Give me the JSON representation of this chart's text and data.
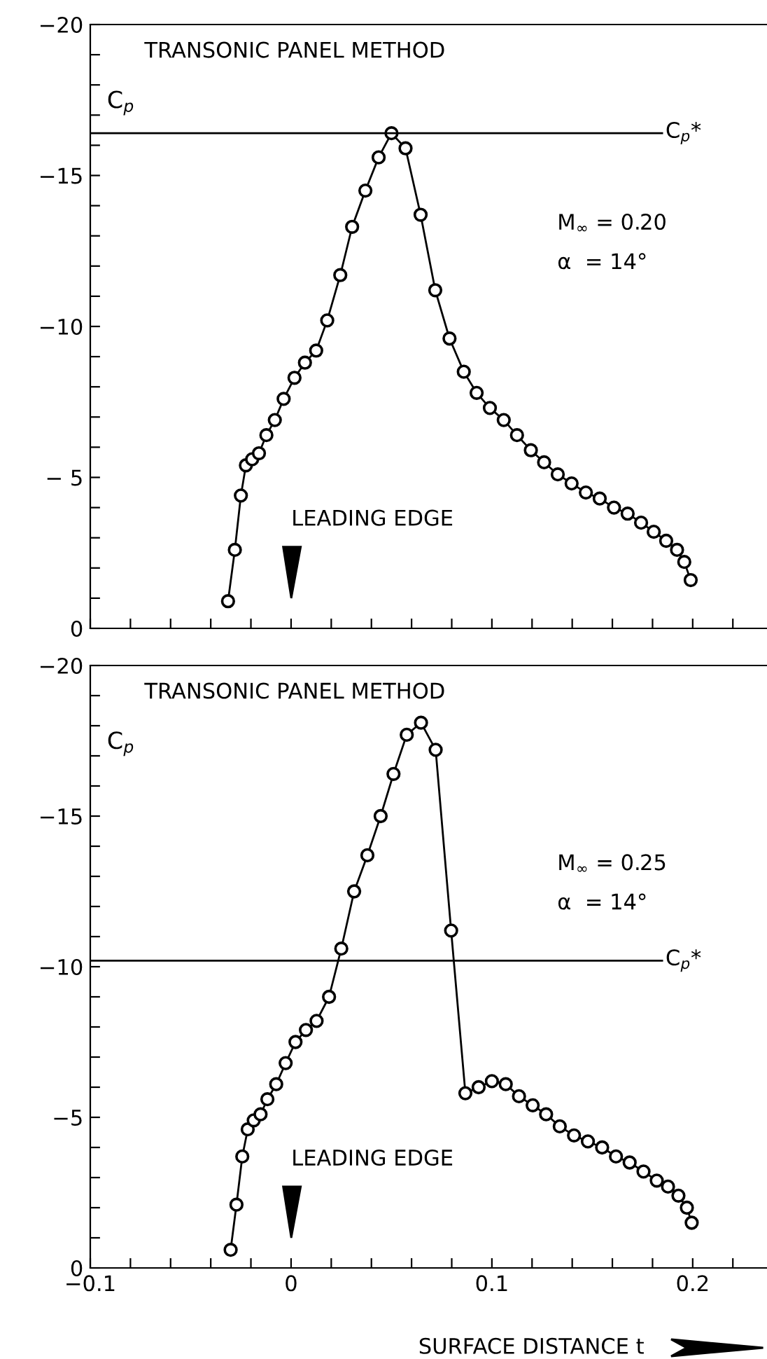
{
  "chart_data": [
    {
      "type": "line",
      "ylabel": "C$_{p}$",
      "marker": "circle",
      "line_style": "solid",
      "tick_labels": "y",
      "grid": false,
      "legend": false,
      "x": [
        -0.0314,
        -0.028,
        -0.025,
        -0.0225,
        -0.0194,
        -0.016,
        -0.0123,
        -0.0081,
        -0.0037,
        0.0017,
        0.0069,
        0.0125,
        0.018,
        0.0245,
        0.0304,
        0.037,
        0.0436,
        0.05,
        0.057,
        0.0645,
        0.0718,
        0.0789,
        0.086,
        0.0924,
        0.099,
        0.1059,
        0.1125,
        0.1194,
        0.126,
        0.1328,
        0.1397,
        0.1468,
        0.1537,
        0.1608,
        0.1676,
        0.1743,
        0.1806,
        0.1868,
        0.1922,
        0.1958,
        0.199
      ],
      "series": [
        {
          "color": "#000000",
          "values": [
            -0.9,
            -2.6,
            -4.4,
            -5.4,
            -5.6,
            -5.8,
            -6.4,
            -6.9,
            -7.6,
            -8.3,
            -8.8,
            -9.2,
            -10.2,
            -11.7,
            -13.3,
            -14.5,
            -15.6,
            -16.4,
            -15.9,
            -13.7,
            -11.2,
            -9.6,
            -8.5,
            -7.8,
            -7.3,
            -6.9,
            -6.4,
            -5.9,
            -5.5,
            -5.1,
            -4.8,
            -4.5,
            -4.3,
            -4.0,
            -3.8,
            -3.5,
            -3.2,
            -2.9,
            -2.6,
            -2.2,
            -1.6
          ]
        }
      ],
      "xlim": [
        -0.1,
        0.237
      ],
      "ylim": [
        0,
        -20
      ],
      "xticks": [
        {
          "value": -0.1,
          "label": null
        },
        {
          "value": -0.08,
          "label": null
        },
        {
          "value": -0.06,
          "label": null
        },
        {
          "value": -0.04,
          "label": null
        },
        {
          "value": -0.02,
          "label": null
        },
        {
          "value": 0,
          "label": null
        },
        {
          "value": 0.02,
          "label": null
        },
        {
          "value": 0.04,
          "label": null
        },
        {
          "value": 0.06,
          "label": null
        },
        {
          "value": 0.08,
          "label": null
        },
        {
          "value": 0.1,
          "label": null
        },
        {
          "value": 0.12,
          "label": null
        },
        {
          "value": 0.14,
          "label": null
        },
        {
          "value": 0.16,
          "label": null
        },
        {
          "value": 0.18,
          "label": null
        },
        {
          "value": 0.2,
          "label": null
        },
        {
          "value": 0.22,
          "label": null
        }
      ],
      "yticks": [
        {
          "value": 0,
          "label": "0"
        },
        {
          "value": -1,
          "label": null
        },
        {
          "value": -2,
          "label": null
        },
        {
          "value": -3,
          "label": null
        },
        {
          "value": -4,
          "label": null
        },
        {
          "value": -5,
          "label": "− 5"
        },
        {
          "value": -6,
          "label": null
        },
        {
          "value": -7,
          "label": null
        },
        {
          "value": -8,
          "label": null
        },
        {
          "value": -9,
          "label": null
        },
        {
          "value": -10,
          "label": "−10"
        },
        {
          "value": -11,
          "label": null
        },
        {
          "value": -12,
          "label": null
        },
        {
          "value": -13,
          "label": null
        },
        {
          "value": -14,
          "label": null
        },
        {
          "value": -15,
          "label": "−15"
        },
        {
          "value": -16,
          "label": null
        },
        {
          "value": -17,
          "label": null
        },
        {
          "value": -18,
          "label": null
        },
        {
          "value": -19,
          "label": null
        },
        {
          "value": -20,
          "label": "−20"
        }
      ],
      "ref_lines": [
        {
          "axis": "y",
          "value": -16.4,
          "label": "C$_{p}$*",
          "color": "#000000"
        }
      ],
      "annotations": [
        "TRANSONIC PANEL METHOD",
        "M$_{∞}$ = 0.20",
        "α  = 14°",
        "LEADING EDGE"
      ]
    },
    {
      "type": "line",
      "ylabel": "C$_{p}$",
      "xlabel": "SURFACE DISTANCE t",
      "marker": "circle",
      "line_style": "solid",
      "grid": false,
      "legend": false,
      "x": [
        -0.0301,
        -0.0272,
        -0.0243,
        -0.0216,
        -0.0186,
        -0.0152,
        -0.0118,
        -0.0074,
        -0.0027,
        0.0022,
        0.0074,
        0.0127,
        0.0189,
        0.025,
        0.0314,
        0.038,
        0.0446,
        0.051,
        0.0576,
        0.0647,
        0.072,
        0.0797,
        0.0868,
        0.0934,
        0.1,
        0.1069,
        0.1135,
        0.1203,
        0.127,
        0.1338,
        0.1409,
        0.1478,
        0.1549,
        0.1618,
        0.1686,
        0.1755,
        0.1821,
        0.1877,
        0.1929,
        0.1971,
        0.1995
      ],
      "series": [
        {
          "color": "#000000",
          "values": [
            -0.6,
            -2.1,
            -3.7,
            -4.6,
            -4.9,
            -5.1,
            -5.6,
            -6.1,
            -6.8,
            -7.5,
            -7.9,
            -8.2,
            -9.0,
            -10.6,
            -12.5,
            -13.7,
            -15.0,
            -16.4,
            -17.7,
            -18.1,
            -17.2,
            -11.2,
            -5.8,
            -6.0,
            -6.2,
            -6.1,
            -5.7,
            -5.4,
            -5.1,
            -4.7,
            -4.4,
            -4.2,
            -4.0,
            -3.7,
            -3.5,
            -3.2,
            -2.9,
            -2.7,
            -2.4,
            -2.0,
            -1.5
          ]
        }
      ],
      "xlim": [
        -0.1,
        0.237
      ],
      "ylim": [
        0,
        -20
      ],
      "xticks": [
        {
          "value": -0.1,
          "label": "−0.1"
        },
        {
          "value": -0.08,
          "label": null
        },
        {
          "value": -0.06,
          "label": null
        },
        {
          "value": -0.04,
          "label": null
        },
        {
          "value": -0.02,
          "label": null
        },
        0,
        {
          "value": 0.02,
          "label": null
        },
        {
          "value": 0.04,
          "label": null
        },
        {
          "value": 0.06,
          "label": null
        },
        {
          "value": 0.08,
          "label": null
        },
        0.1,
        {
          "value": 0.12,
          "label": null
        },
        {
          "value": 0.14,
          "label": null
        },
        {
          "value": 0.16,
          "label": null
        },
        {
          "value": 0.18,
          "label": null
        },
        0.2,
        {
          "value": 0.22,
          "label": null
        }
      ],
      "yticks": [
        {
          "value": 0,
          "label": "0"
        },
        {
          "value": -1,
          "label": null
        },
        {
          "value": -2,
          "label": null
        },
        {
          "value": -3,
          "label": null
        },
        {
          "value": -4,
          "label": null
        },
        {
          "value": -5,
          "label": "−5"
        },
        {
          "value": -6,
          "label": null
        },
        {
          "value": -7,
          "label": null
        },
        {
          "value": -8,
          "label": null
        },
        {
          "value": -9,
          "label": null
        },
        {
          "value": -10,
          "label": "−10"
        },
        {
          "value": -11,
          "label": null
        },
        {
          "value": -12,
          "label": null
        },
        {
          "value": -13,
          "label": null
        },
        {
          "value": -14,
          "label": null
        },
        {
          "value": -15,
          "label": "−15"
        },
        {
          "value": -16,
          "label": null
        },
        {
          "value": -17,
          "label": null
        },
        {
          "value": -18,
          "label": null
        },
        {
          "value": -19,
          "label": null
        },
        {
          "value": -20,
          "label": "−20"
        }
      ],
      "ref_lines": [
        {
          "axis": "y",
          "value": -10.2,
          "label": "C$_{p}$*",
          "color": "#000000"
        }
      ],
      "annotations": [
        "TRANSONIC PANEL METHOD",
        "M$_{∞}$ = 0.25",
        "α  = 14°",
        "LEADING EDGE"
      ]
    }
  ]
}
